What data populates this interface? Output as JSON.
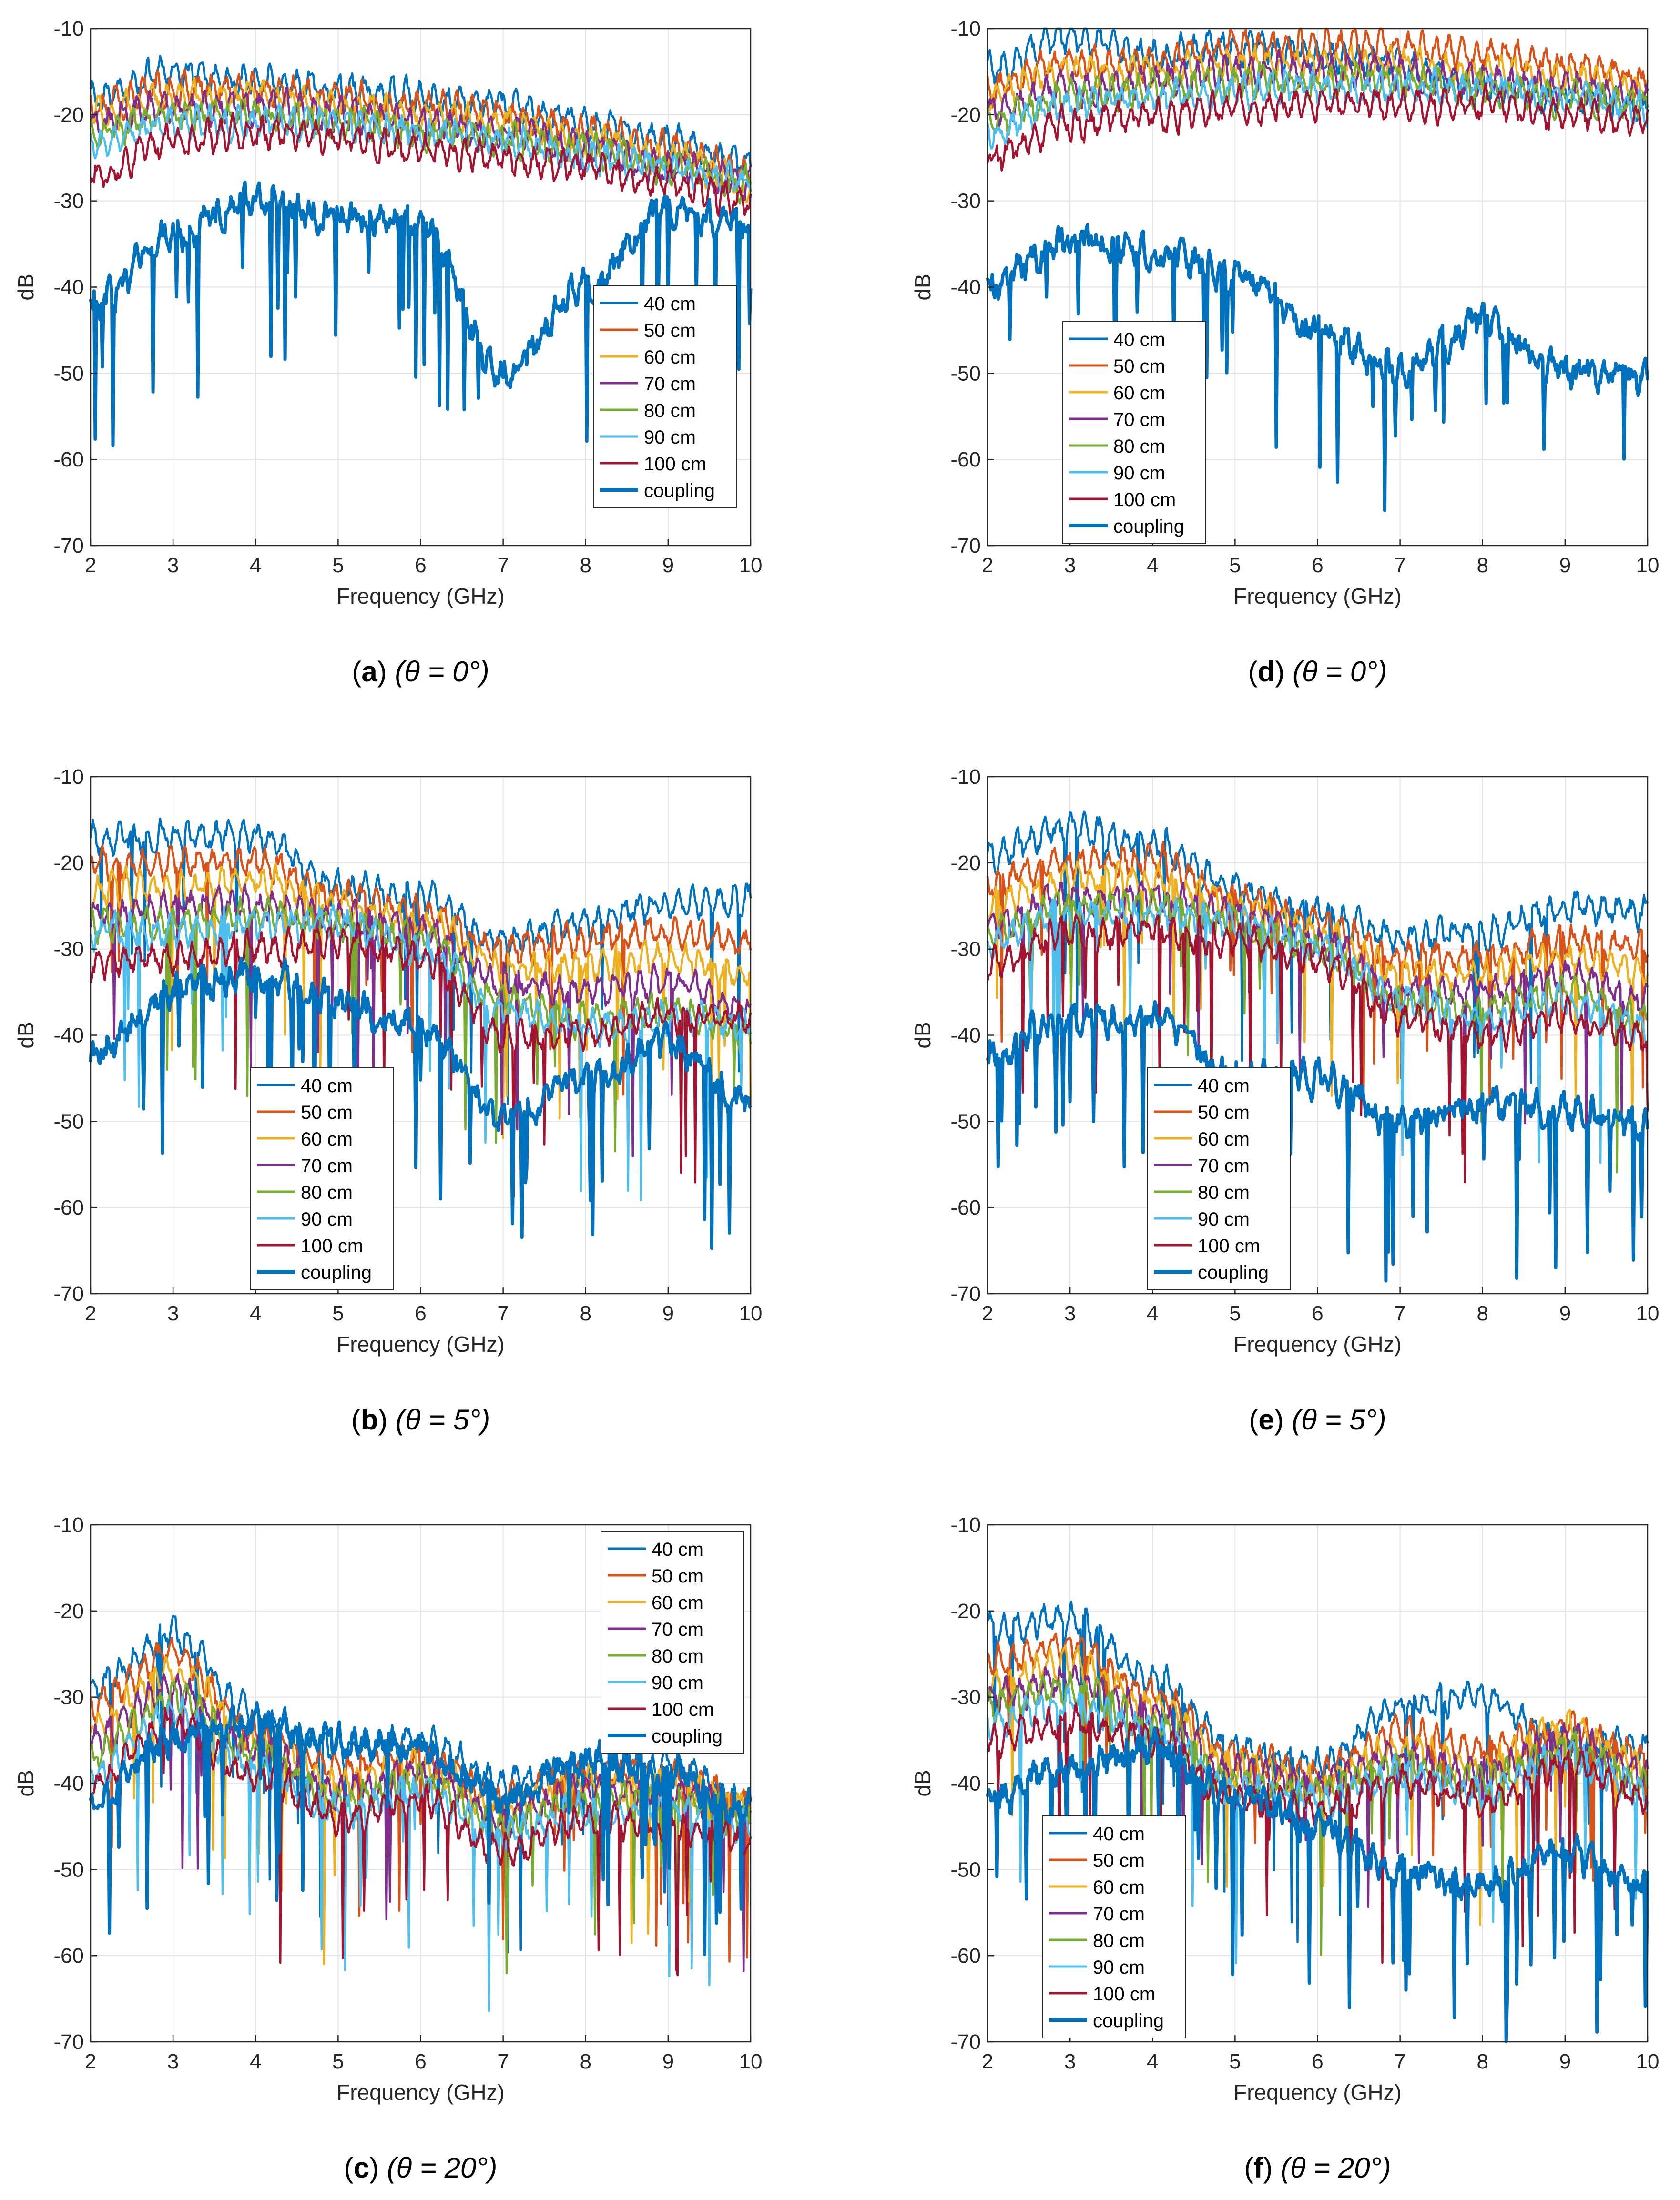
{
  "figure": {
    "common": {
      "xlabel": "Frequency (GHz)",
      "ylabel": "dB",
      "xlim": [
        2,
        10
      ],
      "ylim": [
        -70,
        -10
      ],
      "xticks": [
        "2",
        "3",
        "4",
        "5",
        "6",
        "7",
        "8",
        "9",
        "10"
      ],
      "yticks": [
        "-10",
        "-20",
        "-30",
        "-40",
        "-50",
        "-60",
        "-70"
      ],
      "grid": true
    },
    "colors": {
      "40 cm": "#0072BD",
      "50 cm": "#D95319",
      "60 cm": "#EDB120",
      "70 cm": "#7E2F8E",
      "80 cm": "#77AC30",
      "90 cm": "#4DBEEE",
      "100 cm": "#A2142F",
      "coupling": "#0072BD"
    }
  },
  "chart_data": [
    {
      "id": "a",
      "type": "line",
      "caption_letter": "a",
      "caption_theta": "(θ = 0°)",
      "legend_position": "center-right",
      "legend": [
        "40 cm",
        "50 cm",
        "60 cm",
        "70 cm",
        "80 cm",
        "90 cm",
        "100 cm",
        "coupling"
      ],
      "x": [
        2,
        3,
        4,
        5,
        6,
        7,
        8,
        9,
        10
      ],
      "series": [
        {
          "name": "40 cm",
          "values": [
            -18,
            -15,
            -16,
            -17,
            -18,
            -19,
            -21,
            -23,
            -26
          ]
        },
        {
          "name": "50 cm",
          "values": [
            -19,
            -17,
            -17,
            -18,
            -19,
            -20,
            -22,
            -24,
            -27
          ]
        },
        {
          "name": "60 cm",
          "values": [
            -20,
            -18,
            -18,
            -19,
            -20,
            -21,
            -23,
            -25,
            -28
          ]
        },
        {
          "name": "70 cm",
          "values": [
            -21,
            -19,
            -19,
            -20,
            -21,
            -22,
            -24,
            -26,
            -28
          ]
        },
        {
          "name": "80 cm",
          "values": [
            -22,
            -20,
            -20,
            -21,
            -22,
            -23,
            -24,
            -26,
            -28
          ]
        },
        {
          "name": "90 cm",
          "values": [
            -23,
            -21,
            -21,
            -21,
            -22,
            -23,
            -25,
            -26,
            -28
          ]
        },
        {
          "name": "100 cm",
          "values": [
            -27,
            -23,
            -22,
            -23,
            -24,
            -25,
            -26,
            -28,
            -30
          ]
        },
        {
          "name": "coupling",
          "values": [
            -42,
            -34,
            -30,
            -32,
            -33,
            -50,
            -40,
            -31,
            -33
          ]
        }
      ]
    },
    {
      "id": "b",
      "type": "line",
      "caption_letter": "b",
      "caption_theta": "(θ = 5°)",
      "legend_position": "bottom-center",
      "legend": [
        "40 cm",
        "50 cm",
        "60 cm",
        "70 cm",
        "80 cm",
        "90 cm",
        "100 cm",
        "coupling"
      ],
      "x": [
        2,
        3,
        4,
        5,
        6,
        7,
        8,
        9,
        10
      ],
      "series": [
        {
          "name": "40 cm",
          "values": [
            -17,
            -17,
            -17,
            -23,
            -24,
            -29,
            -27,
            -25,
            -24
          ]
        },
        {
          "name": "50 cm",
          "values": [
            -20,
            -20,
            -20,
            -24,
            -26,
            -30,
            -29,
            -28,
            -29
          ]
        },
        {
          "name": "60 cm",
          "values": [
            -23,
            -23,
            -22,
            -25,
            -27,
            -32,
            -32,
            -31,
            -33
          ]
        },
        {
          "name": "70 cm",
          "values": [
            -26,
            -25,
            -25,
            -26,
            -28,
            -34,
            -35,
            -34,
            -37
          ]
        },
        {
          "name": "80 cm",
          "values": [
            -27,
            -27,
            -26,
            -27,
            -29,
            -36,
            -38,
            -37,
            -40
          ]
        },
        {
          "name": "90 cm",
          "values": [
            -28,
            -28,
            -27,
            -27,
            -30,
            -37,
            -39,
            -38,
            -39
          ]
        },
        {
          "name": "100 cm",
          "values": [
            -32,
            -31,
            -30,
            -29,
            -31,
            -40,
            -40,
            -38,
            -38
          ]
        },
        {
          "name": "coupling",
          "values": [
            -42,
            -35,
            -33,
            -36,
            -39,
            -50,
            -45,
            -41,
            -48
          ]
        }
      ]
    },
    {
      "id": "c",
      "type": "line",
      "caption_letter": "c",
      "caption_theta": "(θ = 20°)",
      "legend_position": "top-right",
      "legend": [
        "40 cm",
        "50 cm",
        "60 cm",
        "70 cm",
        "80 cm",
        "90 cm",
        "100 cm",
        "coupling"
      ],
      "x": [
        2,
        3,
        4,
        5,
        6,
        7,
        8,
        9,
        10
      ],
      "series": [
        {
          "name": "40 cm",
          "values": [
            -29,
            -23,
            -32,
            -36,
            -35,
            -40,
            -38,
            -38,
            -42
          ]
        },
        {
          "name": "50 cm",
          "values": [
            -31,
            -25,
            -34,
            -38,
            -37,
            -42,
            -39,
            -39,
            -42
          ]
        },
        {
          "name": "60 cm",
          "values": [
            -33,
            -27,
            -35,
            -40,
            -38,
            -43,
            -40,
            -40,
            -43
          ]
        },
        {
          "name": "70 cm",
          "values": [
            -35,
            -29,
            -36,
            -41,
            -39,
            -44,
            -41,
            -41,
            -44
          ]
        },
        {
          "name": "80 cm",
          "values": [
            -37,
            -30,
            -37,
            -42,
            -40,
            -45,
            -42,
            -42,
            -44
          ]
        },
        {
          "name": "90 cm",
          "values": [
            -39,
            -32,
            -38,
            -43,
            -41,
            -46,
            -43,
            -43,
            -45
          ]
        },
        {
          "name": "100 cm",
          "values": [
            -40,
            -33,
            -39,
            -44,
            -42,
            -48,
            -44,
            -45,
            -47
          ]
        },
        {
          "name": "coupling",
          "values": [
            -42,
            -35,
            -33,
            -35,
            -36,
            -42,
            -37,
            -39,
            -43
          ]
        }
      ]
    },
    {
      "id": "d",
      "type": "line",
      "caption_letter": "d",
      "caption_theta": "(θ = 0°)",
      "legend_position": "center-left",
      "legend": [
        "40 cm",
        "50 cm",
        "60 cm",
        "70 cm",
        "80 cm",
        "90 cm",
        "100 cm",
        "coupling"
      ],
      "x": [
        2,
        3,
        4,
        5,
        6,
        7,
        8,
        9,
        10
      ],
      "series": [
        {
          "name": "40 cm",
          "values": [
            -15,
            -11,
            -13,
            -12,
            -13,
            -14,
            -17,
            -18,
            -19
          ]
        },
        {
          "name": "50 cm",
          "values": [
            -17,
            -14,
            -14,
            -12,
            -12,
            -12,
            -13,
            -14,
            -16
          ]
        },
        {
          "name": "60 cm",
          "values": [
            -18,
            -15,
            -15,
            -14,
            -14,
            -14,
            -15,
            -16,
            -17
          ]
        },
        {
          "name": "70 cm",
          "values": [
            -20,
            -17,
            -16,
            -15,
            -15,
            -15,
            -16,
            -17,
            -18
          ]
        },
        {
          "name": "80 cm",
          "values": [
            -21,
            -18,
            -17,
            -16,
            -16,
            -16,
            -17,
            -18,
            -19
          ]
        },
        {
          "name": "90 cm",
          "values": [
            -22,
            -19,
            -18,
            -17,
            -17,
            -17,
            -17,
            -18,
            -19
          ]
        },
        {
          "name": "100 cm",
          "values": [
            -25,
            -21,
            -20,
            -19,
            -19,
            -19,
            -19,
            -20,
            -21
          ]
        },
        {
          "name": "coupling",
          "values": [
            -40,
            -35,
            -36,
            -38,
            -45,
            -50,
            -44,
            -50,
            -50
          ]
        }
      ]
    },
    {
      "id": "e",
      "type": "line",
      "caption_letter": "e",
      "caption_theta": "(θ = 5°)",
      "legend_position": "bottom-center",
      "legend": [
        "40 cm",
        "50 cm",
        "60 cm",
        "70 cm",
        "80 cm",
        "90 cm",
        "100 cm",
        "coupling"
      ],
      "x": [
        2,
        3,
        4,
        5,
        6,
        7,
        8,
        9,
        10
      ],
      "series": [
        {
          "name": "40 cm",
          "values": [
            -19,
            -16,
            -18,
            -23,
            -26,
            -29,
            -28,
            -25,
            -26
          ]
        },
        {
          "name": "50 cm",
          "values": [
            -22,
            -20,
            -20,
            -24,
            -27,
            -31,
            -31,
            -29,
            -30
          ]
        },
        {
          "name": "60 cm",
          "values": [
            -25,
            -22,
            -22,
            -25,
            -28,
            -33,
            -33,
            -31,
            -33
          ]
        },
        {
          "name": "70 cm",
          "values": [
            -27,
            -24,
            -24,
            -26,
            -29,
            -35,
            -35,
            -33,
            -36
          ]
        },
        {
          "name": "80 cm",
          "values": [
            -28,
            -25,
            -25,
            -27,
            -30,
            -36,
            -37,
            -35,
            -38
          ]
        },
        {
          "name": "90 cm",
          "values": [
            -29,
            -26,
            -26,
            -27,
            -30,
            -36,
            -38,
            -36,
            -39
          ]
        },
        {
          "name": "100 cm",
          "values": [
            -32,
            -28,
            -28,
            -29,
            -31,
            -38,
            -40,
            -38,
            -40
          ]
        },
        {
          "name": "coupling",
          "values": [
            -42,
            -38,
            -38,
            -45,
            -45,
            -50,
            -48,
            -49,
            -50
          ]
        }
      ]
    },
    {
      "id": "f",
      "type": "line",
      "caption_letter": "f",
      "caption_theta": "(θ = 20°)",
      "legend_position": "bottom-left",
      "legend": [
        "40 cm",
        "50 cm",
        "60 cm",
        "70 cm",
        "80 cm",
        "90 cm",
        "100 cm",
        "coupling"
      ],
      "x": [
        2,
        3,
        4,
        5,
        6,
        7,
        8,
        9,
        10
      ],
      "series": [
        {
          "name": "40 cm",
          "values": [
            -22,
            -21,
            -28,
            -36,
            -38,
            -31,
            -30,
            -35,
            -36
          ]
        },
        {
          "name": "50 cm",
          "values": [
            -26,
            -24,
            -30,
            -37,
            -39,
            -34,
            -36,
            -34,
            -37
          ]
        },
        {
          "name": "60 cm",
          "values": [
            -28,
            -26,
            -31,
            -38,
            -40,
            -36,
            -38,
            -34,
            -38
          ]
        },
        {
          "name": "70 cm",
          "values": [
            -30,
            -28,
            -32,
            -39,
            -40,
            -37,
            -39,
            -35,
            -39
          ]
        },
        {
          "name": "80 cm",
          "values": [
            -31,
            -29,
            -33,
            -40,
            -41,
            -38,
            -40,
            -36,
            -40
          ]
        },
        {
          "name": "90 cm",
          "values": [
            -33,
            -31,
            -34,
            -41,
            -42,
            -39,
            -41,
            -37,
            -41
          ]
        },
        {
          "name": "100 cm",
          "values": [
            -35,
            -33,
            -35,
            -42,
            -43,
            -40,
            -42,
            -38,
            -42
          ]
        },
        {
          "name": "coupling",
          "values": [
            -42,
            -38,
            -36,
            -42,
            -45,
            -50,
            -52,
            -48,
            -52
          ]
        }
      ]
    }
  ]
}
